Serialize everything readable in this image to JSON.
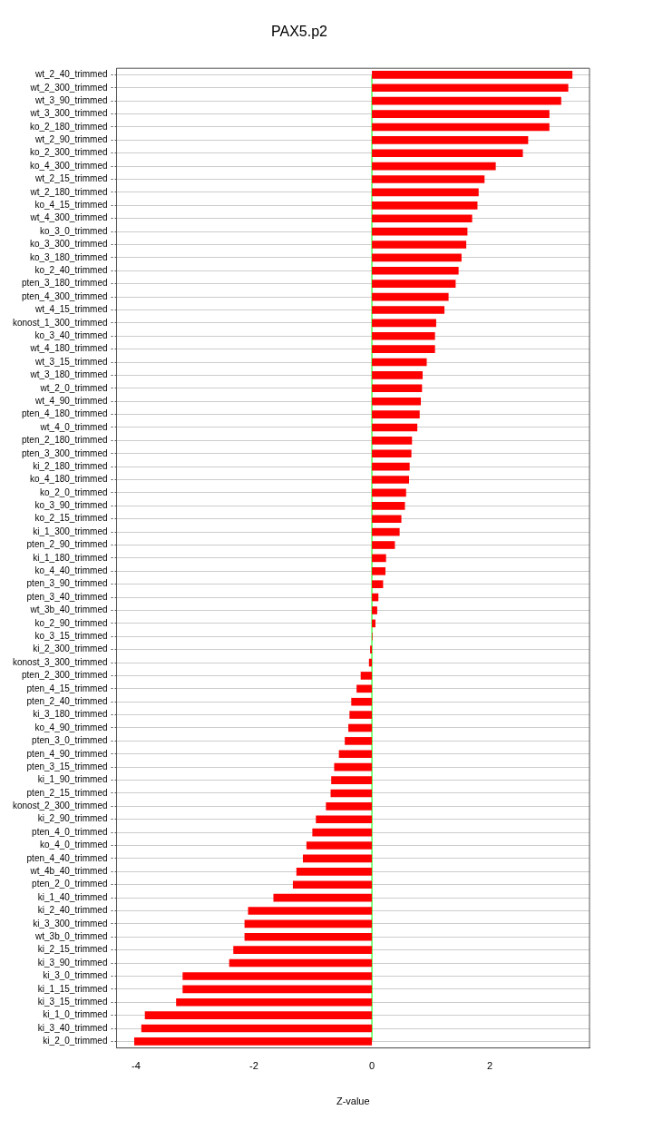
{
  "chart_data": {
    "type": "bar",
    "orientation": "horizontal",
    "title": "PAX5.p2",
    "xlabel": "Z-value",
    "categories": [
      "wt_2_40_trimmed",
      "wt_2_300_trimmed",
      "wt_3_90_trimmed",
      "wt_3_300_trimmed",
      "ko_2_180_trimmed",
      "wt_2_90_trimmed",
      "ko_2_300_trimmed",
      "ko_4_300_trimmed",
      "wt_2_15_trimmed",
      "wt_2_180_trimmed",
      "ko_4_15_trimmed",
      "wt_4_300_trimmed",
      "ko_3_0_trimmed",
      "ko_3_300_trimmed",
      "ko_3_180_trimmed",
      "ko_2_40_trimmed",
      "pten_3_180_trimmed",
      "pten_4_300_trimmed",
      "wt_4_15_trimmed",
      "konost_1_300_trimmed",
      "ko_3_40_trimmed",
      "wt_4_180_trimmed",
      "wt_3_15_trimmed",
      "wt_3_180_trimmed",
      "wt_2_0_trimmed",
      "wt_4_90_trimmed",
      "pten_4_180_trimmed",
      "wt_4_0_trimmed",
      "pten_2_180_trimmed",
      "pten_3_300_trimmed",
      "ki_2_180_trimmed",
      "ko_4_180_trimmed",
      "ko_2_0_trimmed",
      "ko_3_90_trimmed",
      "ko_2_15_trimmed",
      "ki_1_300_trimmed",
      "pten_2_90_trimmed",
      "ki_1_180_trimmed",
      "ko_4_40_trimmed",
      "pten_3_90_trimmed",
      "pten_3_40_trimmed",
      "wt_3b_40_trimmed",
      "ko_2_90_trimmed",
      "ko_3_15_trimmed",
      "ki_2_300_trimmed",
      "konost_3_300_trimmed",
      "pten_2_300_trimmed",
      "pten_4_15_trimmed",
      "pten_2_40_trimmed",
      "ki_3_180_trimmed",
      "ko_4_90_trimmed",
      "pten_3_0_trimmed",
      "pten_4_90_trimmed",
      "pten_3_15_trimmed",
      "ki_1_90_trimmed",
      "pten_2_15_trimmed",
      "konost_2_300_trimmed",
      "ki_2_90_trimmed",
      "pten_4_0_trimmed",
      "ko_4_0_trimmed",
      "pten_4_40_trimmed",
      "wt_4b_40_trimmed",
      "pten_2_0_trimmed",
      "ki_1_40_trimmed",
      "ki_2_40_trimmed",
      "ki_3_300_trimmed",
      "wt_3b_0_trimmed",
      "ki_2_15_trimmed",
      "ki_3_90_trimmed",
      "ki_3_0_trimmed",
      "ki_1_15_trimmed",
      "ki_3_15_trimmed",
      "ki_1_0_trimmed",
      "ki_3_40_trimmed",
      "ki_2_0_trimmed"
    ],
    "values": [
      3.4,
      3.33,
      3.21,
      3.01,
      3.01,
      2.65,
      2.56,
      2.1,
      1.91,
      1.81,
      1.79,
      1.7,
      1.62,
      1.6,
      1.52,
      1.47,
      1.42,
      1.3,
      1.23,
      1.09,
      1.07,
      1.07,
      0.93,
      0.86,
      0.85,
      0.83,
      0.81,
      0.77,
      0.68,
      0.67,
      0.64,
      0.63,
      0.58,
      0.56,
      0.5,
      0.47,
      0.39,
      0.24,
      0.23,
      0.19,
      0.11,
      0.09,
      0.06,
      0.01,
      -0.03,
      -0.05,
      -0.19,
      -0.26,
      -0.35,
      -0.38,
      -0.4,
      -0.46,
      -0.56,
      -0.64,
      -0.69,
      -0.7,
      -0.78,
      -0.95,
      -1.01,
      -1.11,
      -1.17,
      -1.28,
      -1.34,
      -1.67,
      -2.1,
      -2.16,
      -2.16,
      -2.35,
      -2.42,
      -3.21,
      -3.21,
      -3.32,
      -3.85,
      -3.91,
      -4.03
    ],
    "color": "#ff0000",
    "xlim": [
      -4.33,
      3.69
    ],
    "xticks": [
      -4,
      -2,
      0,
      2
    ],
    "grid": "y",
    "ref_lines": [
      {
        "axis": "x",
        "value": 0,
        "color": "#00ff00"
      }
    ]
  }
}
